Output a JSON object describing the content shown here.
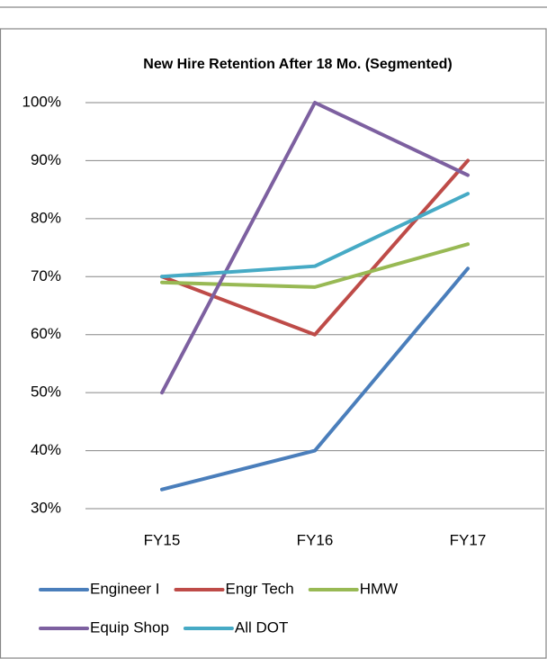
{
  "chart_data": {
    "type": "line",
    "title": "New Hire Retention After 18 Mo. (Segmented)",
    "categories": [
      "FY15",
      "FY16",
      "FY17"
    ],
    "series": [
      {
        "name": "Engineer I",
        "color": "#4a7ebb",
        "values": [
          33.3,
          40,
          71.4
        ]
      },
      {
        "name": "Engr Tech",
        "color": "#be4b48",
        "values": [
          70,
          60,
          90
        ]
      },
      {
        "name": "HMW",
        "color": "#98b954",
        "values": [
          69,
          68.2,
          75.6
        ]
      },
      {
        "name": "Equip Shop",
        "color": "#7d60a0",
        "values": [
          50,
          100,
          87.5
        ]
      },
      {
        "name": "All DOT",
        "color": "#46aac5",
        "values": [
          70,
          71.8,
          84.3
        ]
      }
    ],
    "ylim": [
      30,
      100
    ],
    "yticks": [
      {
        "value": 30,
        "label": "30%"
      },
      {
        "value": 40,
        "label": "40%"
      },
      {
        "value": 50,
        "label": "50%"
      },
      {
        "value": 60,
        "label": "60%"
      },
      {
        "value": 70,
        "label": "70%"
      },
      {
        "value": 80,
        "label": "80%"
      },
      {
        "value": 90,
        "label": "90%"
      },
      {
        "value": 100,
        "label": "100%"
      }
    ],
    "grid": true
  }
}
